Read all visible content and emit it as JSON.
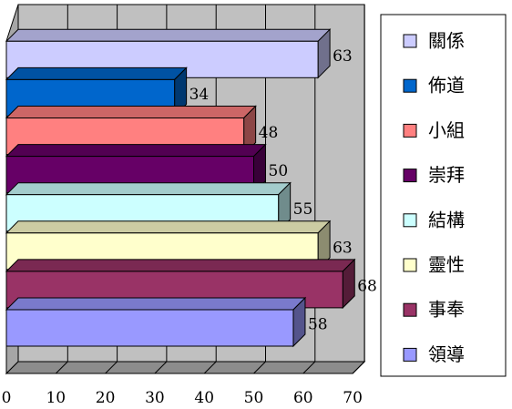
{
  "chart_data": {
    "type": "bar",
    "orientation": "horizontal",
    "three_d": true,
    "categories": [
      "領導",
      "事奉",
      "靈性",
      "結構",
      "崇拜",
      "小組",
      "佈道",
      "關係"
    ],
    "values": [
      58,
      68,
      63,
      55,
      50,
      48,
      34,
      63
    ],
    "data_labels": [
      "58",
      "68",
      "63",
      "55",
      "50",
      "48",
      "34",
      "63"
    ],
    "colors": [
      "#9999ff",
      "#993366",
      "#ffffcc",
      "#ccffff",
      "#660066",
      "#ff8080",
      "#0066cc",
      "#ccccff"
    ],
    "legend_order": [
      "關係",
      "佈道",
      "小組",
      "崇拜",
      "結構",
      "靈性",
      "事奉",
      "領導"
    ],
    "legend_position": "right",
    "xlim": [
      0,
      70
    ],
    "xticks": [
      "0",
      "10",
      "20",
      "30",
      "40",
      "50",
      "60",
      "70"
    ],
    "grid": true,
    "title": "",
    "xlabel": "",
    "ylabel": ""
  }
}
